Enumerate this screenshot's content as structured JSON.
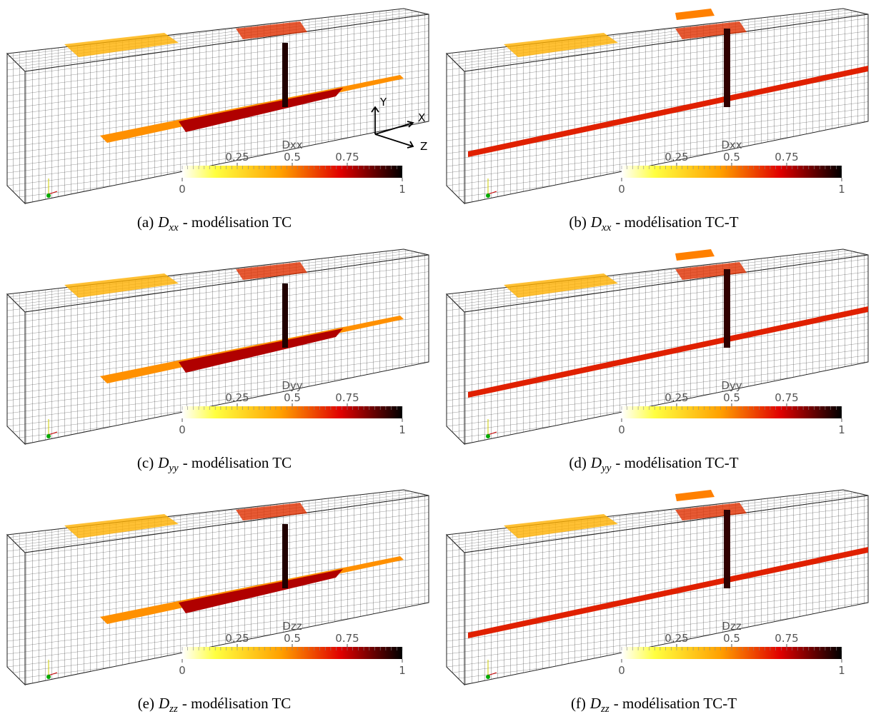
{
  "axes_labels": [
    "Y",
    "X",
    "Z"
  ],
  "panels": [
    {
      "label": "(a)",
      "symbol": "D",
      "subscript": "xx",
      "text": "- modélisation TC",
      "colorbar": {
        "title": "Dxx",
        "ticks": [
          0,
          0.25,
          0.5,
          0.75,
          1
        ]
      }
    },
    {
      "label": "(b)",
      "symbol": "D",
      "subscript": "xx",
      "text": "- modélisation TC-T",
      "colorbar": {
        "title": "Dxx",
        "ticks": [
          0,
          0.25,
          0.5,
          0.75,
          1
        ]
      }
    },
    {
      "label": "(c)",
      "symbol": "D",
      "subscript": "yy",
      "text": "- modélisation TC",
      "colorbar": {
        "title": "Dyy",
        "ticks": [
          0,
          0.25,
          0.5,
          0.75,
          1
        ]
      }
    },
    {
      "label": "(d)",
      "symbol": "D",
      "subscript": "yy",
      "text": "- modélisation TC-T",
      "colorbar": {
        "title": "Dyy",
        "ticks": [
          0,
          0.25,
          0.5,
          0.75,
          1
        ]
      }
    },
    {
      "label": "(e)",
      "symbol": "D",
      "subscript": "zz",
      "text": "- modélisation TC",
      "colorbar": {
        "title": "Dzz",
        "ticks": [
          0,
          0.25,
          0.5,
          0.75,
          1
        ]
      }
    },
    {
      "label": "(f)",
      "symbol": "D",
      "subscript": "zz",
      "text": "- modélisation TC-T",
      "colorbar": {
        "title": "Dzz",
        "ticks": [
          0,
          0.25,
          0.5,
          0.75,
          1
        ]
      }
    }
  ]
}
